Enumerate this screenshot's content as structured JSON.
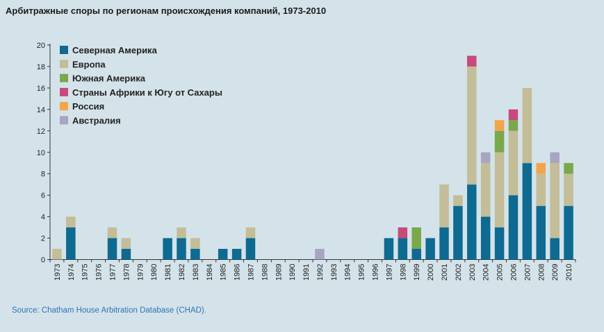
{
  "chart_data": {
    "type": "bar",
    "stacked": true,
    "title": "Арбитражные споры по регионам происхождения компаний, 1973-2010",
    "source": "Source: Chatham House Arbitration Database (CHAD).",
    "xlabel": "",
    "ylabel": "",
    "ylim": [
      0,
      20
    ],
    "yticks": [
      0,
      2,
      4,
      6,
      8,
      10,
      12,
      14,
      16,
      18,
      20
    ],
    "grid": false,
    "legend_position": "top-left",
    "categories": [
      "1973",
      "1974",
      "1975",
      "1976",
      "1977",
      "1978",
      "1979",
      "1980",
      "1981",
      "1982",
      "1983",
      "1984",
      "1985",
      "1986",
      "1987",
      "1988",
      "1989",
      "1990",
      "1991",
      "1992",
      "1993",
      "1994",
      "1995",
      "1996",
      "1997",
      "1998",
      "1999",
      "2000",
      "2001",
      "2002",
      "2003",
      "2004",
      "2005",
      "2006",
      "2007",
      "2008",
      "2009",
      "2010"
    ],
    "series": [
      {
        "name": "Северная Америка",
        "color": "#0e6a91",
        "values": [
          0,
          3,
          0,
          0,
          2,
          1,
          0,
          0,
          2,
          2,
          1,
          0,
          1,
          1,
          2,
          0,
          0,
          0,
          0,
          0,
          0,
          0,
          0,
          0,
          2,
          2,
          1,
          2,
          3,
          5,
          7,
          4,
          3,
          6,
          9,
          5,
          2,
          5
        ]
      },
      {
        "name": "Европа",
        "color": "#c3bd98",
        "values": [
          1,
          1,
          0,
          0,
          1,
          1,
          0,
          0,
          0,
          1,
          1,
          0,
          0,
          0,
          1,
          0,
          0,
          0,
          0,
          0,
          0,
          0,
          0,
          0,
          0,
          0,
          0,
          0,
          4,
          1,
          11,
          5,
          7,
          6,
          7,
          3,
          7,
          3
        ]
      },
      {
        "name": "Южная Америка",
        "color": "#7aa84a",
        "values": [
          0,
          0,
          0,
          0,
          0,
          0,
          0,
          0,
          0,
          0,
          0,
          0,
          0,
          0,
          0,
          0,
          0,
          0,
          0,
          0,
          0,
          0,
          0,
          0,
          0,
          0,
          2,
          0,
          0,
          0,
          0,
          0,
          2,
          1,
          0,
          0,
          0,
          1
        ]
      },
      {
        "name": "Страны Африки к Югу от Сахары",
        "color": "#c8497c",
        "values": [
          0,
          0,
          0,
          0,
          0,
          0,
          0,
          0,
          0,
          0,
          0,
          0,
          0,
          0,
          0,
          0,
          0,
          0,
          0,
          0,
          0,
          0,
          0,
          0,
          0,
          1,
          0,
          0,
          0,
          0,
          1,
          0,
          0,
          1,
          0,
          0,
          0,
          0
        ]
      },
      {
        "name": "Россия",
        "color": "#f3a549",
        "values": [
          0,
          0,
          0,
          0,
          0,
          0,
          0,
          0,
          0,
          0,
          0,
          0,
          0,
          0,
          0,
          0,
          0,
          0,
          0,
          0,
          0,
          0,
          0,
          0,
          0,
          0,
          0,
          0,
          0,
          0,
          0,
          0,
          1,
          0,
          0,
          1,
          0,
          0
        ]
      },
      {
        "name": "Австралия",
        "color": "#a7a5c2",
        "values": [
          0,
          0,
          0,
          0,
          0,
          0,
          0,
          0,
          0,
          0,
          0,
          0,
          0,
          0,
          0,
          0,
          0,
          0,
          0,
          1,
          0,
          0,
          0,
          0,
          0,
          0,
          0,
          0,
          0,
          0,
          0,
          1,
          0,
          0,
          0,
          0,
          1,
          0
        ]
      }
    ]
  }
}
